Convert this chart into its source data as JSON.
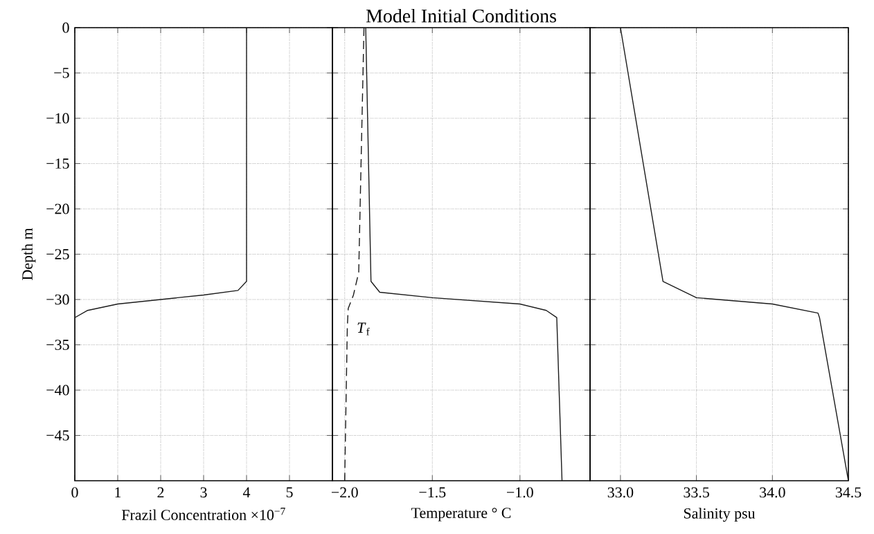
{
  "chart_data": [
    {
      "type": "line",
      "xlabel": "Frazil Concentration ×10$^{−7}$",
      "ylabel": "Depth m",
      "xlim": [
        0,
        6
      ],
      "ylim": [
        -50,
        0
      ],
      "xticks": [
        0,
        1,
        2,
        3,
        4,
        5
      ],
      "yticks": [
        0,
        {
          "value": -5,
          "label": "−5"
        },
        {
          "value": -10,
          "label": "−10"
        },
        {
          "value": -15,
          "label": "−15"
        },
        {
          "value": -20,
          "label": "−20"
        },
        {
          "value": -25,
          "label": "−25"
        },
        {
          "value": -30,
          "label": "−30"
        },
        {
          "value": -35,
          "label": "−35"
        },
        {
          "value": -40,
          "label": "−40"
        },
        {
          "value": -45,
          "label": "−45"
        }
      ],
      "grid": true,
      "series": [
        {
          "color": "#1a1a1a",
          "line_style": "solid",
          "x": [
            4,
            4,
            3.8,
            3,
            2,
            1,
            0.3,
            0,
            0
          ],
          "values": [
            0,
            -28,
            -29,
            -29.5,
            -30,
            -30.5,
            -31.2,
            -32,
            -50
          ]
        }
      ]
    },
    {
      "type": "line",
      "title": "Model Initial Conditions",
      "xlabel": "Temperature ° C",
      "xlim": [
        -2.07,
        -0.6
      ],
      "ylim": [
        -50,
        0
      ],
      "xticks": [
        {
          "value": -2.0,
          "label": "−2.0"
        },
        {
          "value": -1.5,
          "label": "−1.5"
        },
        {
          "value": -1.0,
          "label": "−1.0"
        }
      ],
      "yticks": [
        0,
        -5,
        -10,
        -15,
        -20,
        -25,
        -30,
        -35,
        -40,
        -45
      ],
      "tick_labels": "x",
      "grid": true,
      "annotations": [
        "*T*$_{f}$"
      ],
      "series": [
        {
          "color": "#1a1a1a",
          "line_style": "solid",
          "x": [
            -1.88,
            -1.85,
            -1.8,
            -1.5,
            -1.0,
            -0.85,
            -0.79,
            -0.76
          ],
          "values": [
            0,
            -28,
            -29.2,
            -29.8,
            -30.5,
            -31.2,
            -32,
            -50
          ]
        },
        {
          "color": "#1a1a1a",
          "line_style": "dashed",
          "x": [
            -1.89,
            -1.92,
            -1.95,
            -1.98,
            -1.985,
            -2.0
          ],
          "values": [
            0,
            -27,
            -29.5,
            -31,
            -33,
            -50
          ]
        }
      ]
    },
    {
      "type": "line",
      "xlabel": "Salinity psu",
      "xlim": [
        32.8,
        34.5
      ],
      "ylim": [
        -50,
        0
      ],
      "xticks": [
        {
          "value": 33,
          "label": "33.0"
        },
        33.5,
        {
          "value": 34,
          "label": "34.0"
        },
        34.5
      ],
      "yticks": [
        0,
        -5,
        -10,
        -15,
        -20,
        -25,
        -30,
        -35,
        -40,
        -45
      ],
      "tick_labels": "x",
      "grid": true,
      "series": [
        {
          "color": "#1a1a1a",
          "line_style": "solid",
          "x": [
            33.0,
            33.28,
            33.5,
            34.0,
            34.3,
            34.31,
            34.5
          ],
          "values": [
            0,
            -28,
            -29.8,
            -30.5,
            -31.5,
            -32,
            -50
          ]
        }
      ]
    }
  ]
}
